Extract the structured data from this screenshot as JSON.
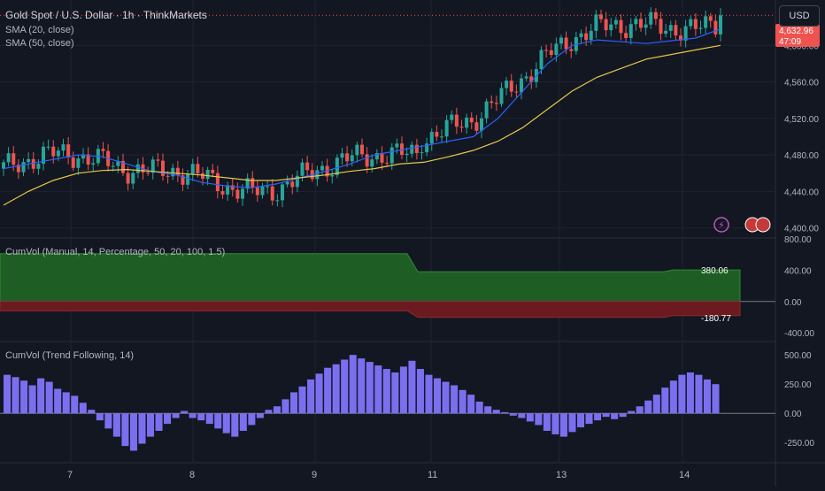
{
  "header": {
    "title": "Gold Spot / U.S. Dollar · 1h · ThinkMarkets",
    "currency": "USD"
  },
  "indicators": {
    "sma20": "SMA (20, close)",
    "sma50": "SMA (50, close)",
    "cumvol_manual": "CumVol (Manual, 14, Percentage, 50, 20, 100, 1.5)",
    "cumvol_trend": "CumVol (Trend Following, 14)"
  },
  "price_badge": {
    "price": "4,632.96",
    "countdown": "47:09"
  },
  "colors": {
    "bg": "#131722",
    "up": "#26a69a",
    "down": "#ef5350",
    "sma20": "#2962ff",
    "sma50": "#e6c84a",
    "band_green": "#1e5e24",
    "band_red": "#6b1a1f",
    "hist": "#7b6ff0",
    "grid": "#1f2330"
  },
  "chart_data": [
    {
      "type": "candlestick",
      "title": "Gold Spot / U.S. Dollar · 1h · ThinkMarkets",
      "x_labels": [
        "7",
        "8",
        "9",
        "11",
        "13",
        "14"
      ],
      "y_ticks": [
        "4,600.00",
        "4,560.00",
        "4,520.00",
        "4,480.00",
        "4,440.00",
        "4,400.00"
      ],
      "ylim": [
        4390,
        4640
      ],
      "current_price": 4632.96,
      "sma20_values": [
        4465,
        4470,
        4475,
        4480,
        4478,
        4470,
        4462,
        4458,
        4450,
        4446,
        4444,
        4448,
        4455,
        4462,
        4470,
        4480,
        4485,
        4490,
        4495,
        4500,
        4520,
        4550,
        4580,
        4600,
        4606,
        4604,
        4602,
        4605,
        4608,
        4618
      ],
      "sma50_values": [
        4425,
        4440,
        4452,
        4460,
        4463,
        4464,
        4462,
        4460,
        4458,
        4455,
        4452,
        4452,
        4455,
        4458,
        4462,
        4465,
        4470,
        4472,
        4478,
        4485,
        4495,
        4510,
        4530,
        4550,
        4565,
        4575,
        4585,
        4590,
        4595,
        4600
      ]
    },
    {
      "type": "area",
      "title": "CumVol (Manual, 14, Percentage, 50, 20, 100, 1.5)",
      "y_ticks": [
        "800.00",
        "400.00",
        "0.00",
        "-400.00"
      ],
      "ylim": [
        -500,
        800
      ],
      "upper_band": 380.06,
      "lower_band": -180.77,
      "labels": [
        "380.06",
        "-180.77"
      ]
    },
    {
      "type": "bar",
      "title": "CumVol (Trend Following, 14)",
      "y_ticks": [
        "500.00",
        "250.00",
        "0.00",
        "-250.00"
      ],
      "ylim": [
        -400,
        600
      ],
      "values": [
        330,
        310,
        280,
        240,
        300,
        270,
        210,
        180,
        150,
        90,
        30,
        -60,
        -130,
        -200,
        -280,
        -320,
        -260,
        -200,
        -150,
        -90,
        -40,
        20,
        -40,
        -60,
        -90,
        -130,
        -170,
        -200,
        -150,
        -100,
        -40,
        30,
        60,
        120,
        180,
        230,
        290,
        340,
        390,
        420,
        460,
        500,
        470,
        440,
        410,
        380,
        350,
        400,
        450,
        380,
        330,
        300,
        270,
        240,
        200,
        160,
        100,
        60,
        30,
        10,
        -20,
        -40,
        -70,
        -100,
        -150,
        -180,
        -200,
        -160,
        -120,
        -90,
        -60,
        -30,
        -50,
        -30,
        20,
        60,
        110,
        160,
        220,
        280,
        330,
        350,
        330,
        290,
        250
      ]
    }
  ]
}
